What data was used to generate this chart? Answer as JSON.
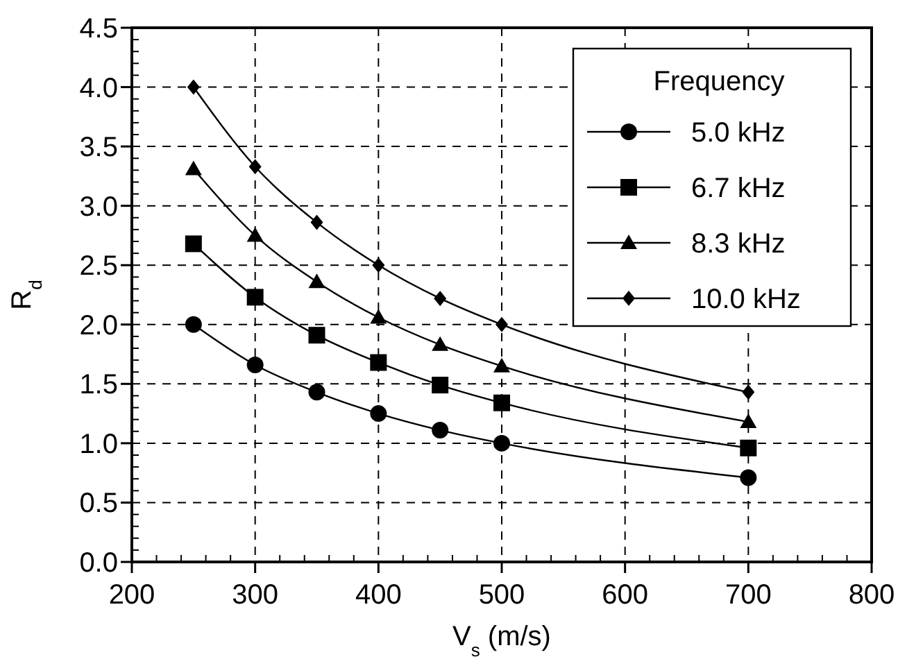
{
  "chart_data": {
    "type": "line",
    "xlabel": "V$_{s}$ (m/s)",
    "ylabel": "R$_{d}$",
    "legend_title": "Frequency",
    "legend": "top right",
    "grid": true,
    "x": [
      250,
      300,
      350,
      400,
      450,
      500,
      700
    ],
    "series": [
      {
        "name": "5.0 kHz",
        "color": "#000000",
        "marker": "circle",
        "values": [
          2.0,
          1.66,
          1.43,
          1.25,
          1.11,
          1.0,
          0.71
        ]
      },
      {
        "name": "6.7 kHz",
        "color": "#000000",
        "marker": "square",
        "values": [
          2.68,
          2.23,
          1.91,
          1.68,
          1.49,
          1.34,
          0.96
        ]
      },
      {
        "name": "8.3 kHz",
        "color": "#000000",
        "marker": "triangle",
        "values": [
          3.31,
          2.75,
          2.36,
          2.06,
          1.83,
          1.65,
          1.18
        ]
      },
      {
        "name": "10.0 kHz",
        "color": "#000000",
        "marker": "diamond",
        "values": [
          4.0,
          3.33,
          2.86,
          2.5,
          2.22,
          2.0,
          1.43
        ]
      }
    ],
    "xlim": [
      200,
      800
    ],
    "xticks": [
      200,
      300,
      400,
      500,
      600,
      700,
      800
    ],
    "ylim": [
      0,
      4.5
    ],
    "yticks": [
      {
        "value": 0,
        "label": "0.0"
      },
      {
        "value": 0.5,
        "label": "0.5"
      },
      {
        "value": 1,
        "label": "1.0"
      },
      {
        "value": 1.5,
        "label": "1.5"
      },
      {
        "value": 2,
        "label": "2.0"
      },
      {
        "value": 2.5,
        "label": "2.5"
      },
      {
        "value": 3,
        "label": "3.0"
      },
      {
        "value": 3.5,
        "label": "3.5"
      },
      {
        "value": 4,
        "label": "4.0"
      },
      {
        "value": 4.5,
        "label": "4.5"
      }
    ]
  }
}
